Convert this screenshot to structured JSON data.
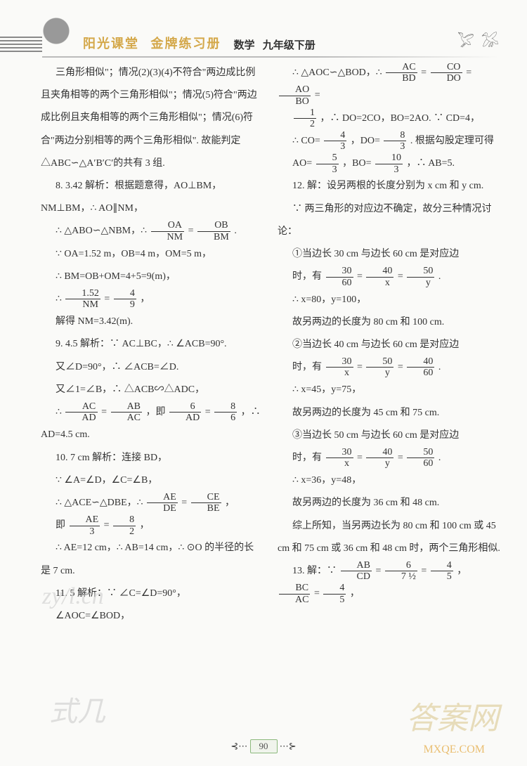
{
  "header": {
    "brand1": "阳光课堂",
    "brand2": "金牌练习册",
    "subject": "数学",
    "grade": "九年级下册"
  },
  "left": {
    "p1": "三角形相似\"；情况(2)(3)(4)不符合\"两边成比例且夹角相等的两个三角形相似\"；情况(5)符合\"两边成比例且夹角相等的两个三角形相似\"；情况(6)符合\"两边分别相等的两个三角形相似\". 故能判定△ABC∽△A′B′C′的共有 3 组.",
    "q8_head": "8. 3.42  解析：根据题意得，AO⊥BM，NM⊥BM，∴ AO∥NM，",
    "q8_l2a": "∴ △ABO∽△NBM，∴ ",
    "q8_frac1_num": "OA",
    "q8_frac1_den": "NM",
    "q8_eq": " = ",
    "q8_frac2_num": "OB",
    "q8_frac2_den": "BM",
    "q8_l2b": ".",
    "q8_l3": "∵ OA=1.52 m，OB=4 m，OM=5 m，",
    "q8_l4": "∴ BM=OB+OM=4+5=9(m)，",
    "q8_l5a": "∴ ",
    "q8_frac3_num": "1.52",
    "q8_frac3_den": "NM",
    "q8_l5b": " = ",
    "q8_frac4_num": "4",
    "q8_frac4_den": "9",
    "q8_l5c": "，",
    "q8_l6": "解得 NM=3.42(m).",
    "q9_head": "9. 4.5  解析：∵ AC⊥BC，∴ ∠ACB=90°.",
    "q9_l2": "又∠D=90°，∴ ∠ACB=∠D.",
    "q9_l3": "又∠1=∠B，∴ △ACB∽△ADC，",
    "q9_l4a": "∴ ",
    "q9_frac1_num": "AC",
    "q9_frac1_den": "AD",
    "q9_l4b": " = ",
    "q9_frac2_num": "AB",
    "q9_frac2_den": "AC",
    "q9_l4c": "，即 ",
    "q9_frac3_num": "6",
    "q9_frac3_den": "AD",
    "q9_l4d": " = ",
    "q9_frac4_num": "8",
    "q9_frac4_den": "6",
    "q9_l4e": "，∴ AD=4.5 cm.",
    "q10_head": "10. 7 cm  解析：连接 BD，",
    "q10_l2": "∵ ∠A=∠D，∠C=∠B，",
    "q10_l3a": "∴ △ACE∽△DBE，∴ ",
    "q10_frac1_num": "AE",
    "q10_frac1_den": "DE",
    "q10_l3b": " = ",
    "q10_frac2_num": "CE",
    "q10_frac2_den": "BE",
    "q10_l3c": "，",
    "q10_l4a": "即 ",
    "q10_frac3_num": "AE",
    "q10_frac3_den": "3",
    "q10_l4b": " = ",
    "q10_frac4_num": "8",
    "q10_frac4_den": "2",
    "q10_l4c": "，",
    "q10_l5": "∴ AE=12 cm，∴ AB=14 cm，∴ ⊙O 的半径的长是 7 cm.",
    "q11_head": "11. 5  解析：∵ ∠C=∠D=90°，",
    "q11_l2": "∠AOC=∠BOD，"
  },
  "right": {
    "r1a": "∴ △AOC∽△BOD，∴ ",
    "r1_f1n": "AC",
    "r1_f1d": "BD",
    "r1b": " = ",
    "r1_f2n": "CO",
    "r1_f2d": "DO",
    "r1c": " = ",
    "r1_f3n": "AO",
    "r1_f3d": "BO",
    "r1d": " =",
    "r2a": "",
    "r2_f1n": "1",
    "r2_f1d": "2",
    "r2b": "，∴ DO=2CO，BO=2AO. ∵ CD=4，",
    "r3a": "∴ CO= ",
    "r3_f1n": "4",
    "r3_f1d": "3",
    "r3b": "，DO= ",
    "r3_f2n": "8",
    "r3_f2d": "3",
    "r3c": ". 根据勾股定理可得",
    "r4a": "AO= ",
    "r4_f1n": "5",
    "r4_f1d": "3",
    "r4b": "，BO= ",
    "r4_f2n": "10",
    "r4_f2d": "3",
    "r4c": "，∴ AB=5.",
    "q12_head": "12. 解：设另两根的长度分别为 x cm 和 y cm.",
    "q12_l1": "∵ 两三角形的对应边不确定，故分三种情况讨论：",
    "q12_c1": "①当边长 30 cm 与边长 60 cm 是对应边",
    "q12_c1b_a": "时，有 ",
    "q12_c1f1n": "30",
    "q12_c1f1d": "60",
    "q12_c1b_b": " = ",
    "q12_c1f2n": "40",
    "q12_c1f2d": "x",
    "q12_c1b_c": " = ",
    "q12_c1f3n": "50",
    "q12_c1f3d": "y",
    "q12_c1b_d": ".",
    "q12_c1r": "∴ x=80，y=100，",
    "q12_c1s": "故另两边的长度为 80 cm 和 100 cm.",
    "q12_c2": "②当边长 40 cm 与边长 60 cm 是对应边",
    "q12_c2b_a": "时，有 ",
    "q12_c2f1n": "30",
    "q12_c2f1d": "x",
    "q12_c2b_b": " = ",
    "q12_c2f2n": "50",
    "q12_c2f2d": "y",
    "q12_c2b_c": " = ",
    "q12_c2f3n": "40",
    "q12_c2f3d": "60",
    "q12_c2b_d": ".",
    "q12_c2r": "∴ x=45，y=75，",
    "q12_c2s": "故另两边的长度为 45 cm 和 75 cm.",
    "q12_c3": "③当边长 50 cm 与边长 60 cm 是对应边",
    "q12_c3b_a": "时，有 ",
    "q12_c3f1n": "30",
    "q12_c3f1d": "x",
    "q12_c3b_b": " = ",
    "q12_c3f2n": "40",
    "q12_c3f2d": "y",
    "q12_c3b_c": " = ",
    "q12_c3f3n": "50",
    "q12_c3f3d": "60",
    "q12_c3b_d": ".",
    "q12_c3r": "∴ x=36，y=48，",
    "q12_c3s": "故另两边的长度为 36 cm 和 48 cm.",
    "q12_sum": "综上所知，当另两边长为 80 cm 和 100 cm 或 45 cm 和 75 cm 或 36 cm 和 48 cm 时，两个三角形相似.",
    "q13a": "13. 解：∵ ",
    "q13_f1n": "AB",
    "q13_f1d": "CD",
    "q13b": " = ",
    "q13_f2n": "6",
    "q13_f2d": "7 ½",
    "q13c": " = ",
    "q13_f3n": "4",
    "q13_f3d": "5",
    "q13d": "，",
    "q13_f4n": "BC",
    "q13_f4d": "AC",
    "q13e": " = ",
    "q13_f5n": "4",
    "q13_f5d": "5",
    "q13f": "，"
  },
  "footer": {
    "page": "90"
  },
  "wm": {
    "w1": "zy/l.cn",
    "w2": "式几",
    "w3": "答案网",
    "w4": "MXQE.COM"
  }
}
